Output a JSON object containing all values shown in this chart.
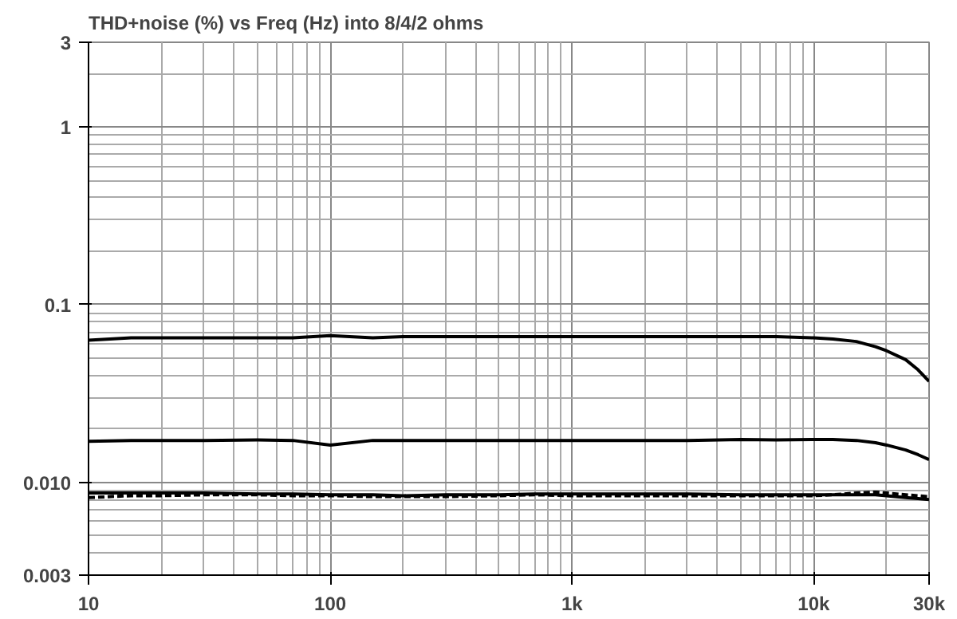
{
  "chart_data": {
    "type": "line",
    "title": "THD+noise (%) vs Freq (Hz) into 8/4/2 ohms",
    "x": [
      10,
      15,
      20,
      30,
      50,
      70,
      100,
      150,
      200,
      300,
      500,
      700,
      1000,
      2000,
      3000,
      5000,
      7000,
      10000,
      12000,
      15000,
      18000,
      20000,
      24000,
      27000,
      30000
    ],
    "series": [
      {
        "color": "#000000",
        "line_style": "solid",
        "values": [
          0.063,
          0.065,
          0.065,
          0.065,
          0.065,
          0.065,
          0.067,
          0.065,
          0.066,
          0.066,
          0.066,
          0.066,
          0.066,
          0.066,
          0.066,
          0.066,
          0.066,
          0.065,
          0.064,
          0.062,
          0.058,
          0.055,
          0.049,
          0.043,
          0.037
        ]
      },
      {
        "color": "#000000",
        "line_style": "solid",
        "values": [
          0.017,
          0.0172,
          0.0172,
          0.0172,
          0.0173,
          0.0172,
          0.0162,
          0.0172,
          0.0172,
          0.0172,
          0.0172,
          0.0172,
          0.0172,
          0.0172,
          0.0172,
          0.0174,
          0.0173,
          0.0174,
          0.0174,
          0.0172,
          0.0167,
          0.0162,
          0.0152,
          0.0143,
          0.0134
        ]
      },
      {
        "color": "#000000",
        "line_style": "solid",
        "values": [
          0.0087,
          0.0087,
          0.0087,
          0.0087,
          0.0086,
          0.0086,
          0.0085,
          0.0085,
          0.0084,
          0.0085,
          0.0085,
          0.0086,
          0.0086,
          0.0086,
          0.0086,
          0.0085,
          0.0085,
          0.0085,
          0.0085,
          0.0085,
          0.0085,
          0.0084,
          0.0082,
          0.0081,
          0.008
        ]
      },
      {
        "color": "#000000",
        "line_style": "dashed",
        "values": [
          0.0082,
          0.0084,
          0.0084,
          0.0085,
          0.0085,
          0.0084,
          0.0084,
          0.0083,
          0.0083,
          0.0083,
          0.0084,
          0.0085,
          0.0084,
          0.0084,
          0.0084,
          0.0084,
          0.0084,
          0.0084,
          0.0085,
          0.0087,
          0.0088,
          0.0087,
          0.0085,
          0.0084,
          0.0083
        ]
      }
    ],
    "log": "xy",
    "grid": true,
    "xlim": [
      10,
      30000
    ],
    "ylim": [
      0.003,
      3
    ],
    "xticks": [
      10,
      100,
      {
        "value": 1000,
        "label": "1k"
      },
      {
        "value": 10000,
        "label": "10k"
      },
      {
        "value": 30000,
        "label": "30k"
      }
    ],
    "yticks": [
      {
        "value": 0.003,
        "label": "0.003"
      },
      {
        "value": 0.01,
        "label": "0.010"
      },
      0.1,
      1,
      3
    ]
  }
}
